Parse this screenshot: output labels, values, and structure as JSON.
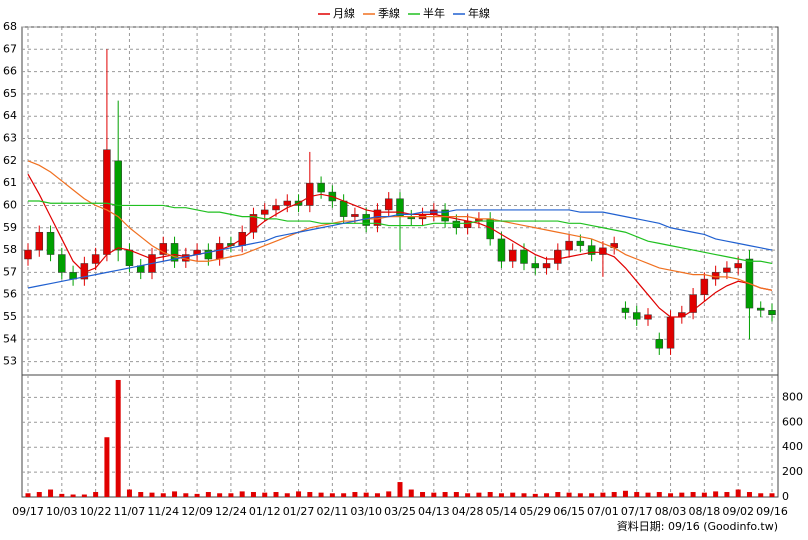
{
  "chart_data": {
    "type": "candlestick",
    "legend_position": "top",
    "grid": true,
    "footnote": "資料日期: 09/16 (Goodinfo.tw)",
    "categories": [
      "09/17",
      null,
      null,
      "10/03",
      null,
      null,
      "10/22",
      null,
      null,
      "11/07",
      null,
      null,
      "11/24",
      null,
      null,
      "12/09",
      null,
      null,
      "12/24",
      null,
      null,
      "01/12",
      null,
      null,
      "01/27",
      null,
      null,
      "02/11",
      null,
      null,
      "03/10",
      null,
      null,
      "03/25",
      null,
      null,
      "04/13",
      null,
      null,
      "04/28",
      null,
      null,
      "05/14",
      null,
      null,
      "05/29",
      null,
      null,
      "06/15",
      null,
      null,
      "07/01",
      null,
      null,
      "07/17",
      null,
      null,
      "08/03",
      null,
      null,
      "08/18",
      null,
      null,
      "09/02",
      null,
      null,
      "09/16"
    ],
    "open": [
      57.6,
      58.0,
      58.8,
      57.8,
      57.0,
      56.7,
      57.4,
      57.8,
      62.0,
      58.0,
      57.3,
      57.0,
      57.8,
      58.3,
      57.5,
      57.8,
      58.0,
      57.6,
      58.3,
      58.2,
      58.8,
      59.6,
      59.8,
      60.0,
      60.2,
      60.0,
      61.0,
      60.6,
      60.2,
      59.5,
      59.6,
      59.1,
      59.8,
      60.3,
      59.5,
      59.4,
      59.6,
      59.8,
      59.3,
      59.0,
      59.3,
      59.4,
      58.5,
      57.5,
      58.0,
      57.4,
      57.2,
      57.4,
      58.0,
      58.4,
      58.2,
      57.8,
      58.1,
      55.4,
      55.2,
      54.9,
      54.0,
      53.6,
      55.0,
      55.2,
      56.0,
      56.7,
      57.0,
      57.2,
      57.6,
      55.4,
      55.3
    ],
    "high": [
      58.3,
      59.1,
      59.1,
      58.1,
      57.3,
      57.7,
      58.1,
      67.0,
      64.7,
      58.3,
      57.6,
      58.1,
      58.6,
      58.6,
      58.1,
      58.3,
      58.3,
      58.6,
      58.6,
      59.1,
      59.9,
      60.1,
      60.3,
      60.5,
      60.5,
      62.4,
      61.3,
      60.9,
      60.5,
      59.9,
      59.9,
      60.1,
      60.6,
      60.6,
      59.8,
      59.9,
      60.1,
      60.1,
      59.6,
      59.6,
      59.7,
      59.7,
      58.8,
      58.3,
      58.3,
      57.7,
      57.7,
      58.3,
      58.7,
      58.7,
      58.5,
      58.4,
      58.6,
      55.7,
      55.5,
      55.4,
      54.3,
      55.3,
      55.5,
      56.3,
      57.0,
      57.3,
      57.5,
      57.7,
      58.0,
      55.7,
      55.6
    ],
    "low": [
      57.3,
      57.7,
      57.5,
      56.7,
      56.4,
      56.4,
      57.1,
      57.5,
      57.5,
      57.0,
      56.7,
      56.7,
      57.5,
      57.2,
      57.2,
      57.5,
      57.3,
      57.3,
      57.9,
      57.9,
      58.5,
      59.3,
      59.5,
      59.7,
      59.7,
      59.7,
      60.3,
      59.9,
      59.2,
      59.2,
      58.8,
      58.8,
      59.5,
      58.0,
      59.1,
      59.1,
      59.3,
      59.0,
      58.7,
      58.7,
      59.0,
      58.2,
      57.2,
      57.2,
      57.1,
      56.9,
      56.9,
      57.1,
      57.7,
      57.9,
      57.5,
      56.8,
      57.8,
      54.9,
      54.6,
      54.6,
      53.3,
      53.3,
      54.7,
      54.9,
      55.7,
      56.4,
      56.7,
      56.9,
      54.0,
      55.0,
      54.8
    ],
    "close": [
      58.0,
      58.8,
      57.8,
      57.0,
      56.7,
      57.4,
      57.8,
      62.5,
      58.0,
      57.3,
      57.0,
      57.8,
      58.3,
      57.5,
      57.8,
      58.0,
      57.6,
      58.3,
      58.2,
      58.8,
      59.6,
      59.8,
      60.0,
      60.2,
      60.0,
      61.0,
      60.6,
      60.2,
      59.5,
      59.6,
      59.1,
      59.8,
      60.3,
      59.5,
      59.4,
      59.6,
      59.8,
      59.3,
      59.0,
      59.3,
      59.4,
      58.5,
      57.5,
      58.0,
      57.4,
      57.2,
      57.4,
      58.0,
      58.4,
      58.2,
      57.8,
      58.1,
      58.3,
      55.2,
      54.9,
      55.1,
      53.6,
      55.0,
      55.2,
      56.0,
      56.7,
      57.0,
      57.2,
      57.4,
      55.4,
      55.3,
      55.1
    ],
    "up_color": "#e00000",
    "down_color": "#00a000",
    "ylim": [
      52.4,
      68
    ],
    "yticks": [
      53,
      54,
      55,
      56,
      57,
      58,
      59,
      60,
      61,
      62,
      63,
      64,
      65,
      66,
      67,
      68
    ],
    "series": [
      {
        "name": "月線",
        "color": "#e00000",
        "values": [
          61.4,
          60.5,
          59.5,
          58.5,
          57.5,
          57.0,
          57.2,
          57.8,
          58.1,
          58.0,
          57.8,
          57.6,
          57.7,
          57.8,
          57.7,
          57.8,
          57.9,
          58.0,
          58.2,
          58.5,
          58.9,
          59.3,
          59.6,
          59.9,
          60.1,
          60.4,
          60.5,
          60.4,
          60.2,
          60.0,
          59.8,
          59.7,
          59.7,
          59.7,
          59.6,
          59.6,
          59.6,
          59.5,
          59.4,
          59.3,
          59.2,
          59.0,
          58.7,
          58.4,
          58.1,
          57.8,
          57.6,
          57.6,
          57.7,
          57.8,
          57.9,
          57.9,
          57.7,
          57.2,
          56.6,
          56.0,
          55.4,
          55.0,
          55.0,
          55.3,
          55.7,
          56.1,
          56.4,
          56.6,
          56.5,
          56.3,
          56.2
        ]
      },
      {
        "name": "季線",
        "color": "#f07020",
        "values": [
          62.0,
          61.8,
          61.5,
          61.1,
          60.7,
          60.3,
          60.0,
          59.8,
          59.5,
          59.0,
          58.6,
          58.2,
          57.9,
          57.7,
          57.6,
          57.5,
          57.5,
          57.6,
          57.7,
          57.8,
          58.0,
          58.2,
          58.4,
          58.6,
          58.8,
          59.0,
          59.1,
          59.2,
          59.3,
          59.3,
          59.4,
          59.4,
          59.5,
          59.5,
          59.5,
          59.5,
          59.5,
          59.5,
          59.5,
          59.5,
          59.4,
          59.4,
          59.3,
          59.2,
          59.1,
          59.0,
          58.9,
          58.8,
          58.7,
          58.6,
          58.5,
          58.3,
          58.1,
          57.8,
          57.6,
          57.4,
          57.2,
          57.1,
          57.0,
          56.9,
          56.9,
          56.8,
          56.8,
          56.7,
          56.5,
          56.3,
          56.2
        ]
      },
      {
        "name": "半年",
        "color": "#20c020",
        "values": [
          60.2,
          60.2,
          60.1,
          60.1,
          60.1,
          60.1,
          60.1,
          60.1,
          60.0,
          60.0,
          60.0,
          60.0,
          60.0,
          59.9,
          59.9,
          59.8,
          59.7,
          59.7,
          59.6,
          59.5,
          59.5,
          59.4,
          59.4,
          59.3,
          59.3,
          59.3,
          59.2,
          59.2,
          59.2,
          59.2,
          59.2,
          59.2,
          59.1,
          59.1,
          59.1,
          59.1,
          59.2,
          59.2,
          59.2,
          59.2,
          59.3,
          59.3,
          59.3,
          59.3,
          59.3,
          59.3,
          59.3,
          59.3,
          59.2,
          59.2,
          59.1,
          59.0,
          58.9,
          58.8,
          58.6,
          58.4,
          58.3,
          58.2,
          58.1,
          58.0,
          57.9,
          57.8,
          57.7,
          57.6,
          57.5,
          57.5,
          57.4
        ]
      },
      {
        "name": "年線",
        "color": "#2060d0",
        "values": [
          56.3,
          56.4,
          56.5,
          56.6,
          56.7,
          56.8,
          56.9,
          57.0,
          57.1,
          57.2,
          57.3,
          57.4,
          57.5,
          57.6,
          57.7,
          57.8,
          57.9,
          58.0,
          58.1,
          58.2,
          58.3,
          58.4,
          58.6,
          58.7,
          58.8,
          58.9,
          59.0,
          59.1,
          59.2,
          59.3,
          59.4,
          59.5,
          59.5,
          59.6,
          59.6,
          59.7,
          59.7,
          59.7,
          59.8,
          59.8,
          59.8,
          59.8,
          59.8,
          59.8,
          59.8,
          59.8,
          59.8,
          59.8,
          59.8,
          59.7,
          59.7,
          59.7,
          59.6,
          59.5,
          59.4,
          59.3,
          59.2,
          59.0,
          58.9,
          58.8,
          58.7,
          58.5,
          58.4,
          58.3,
          58.2,
          58.1,
          58.0
        ]
      }
    ],
    "volume": {
      "type": "bar",
      "color": "#e00000",
      "ylim": [
        0,
        980
      ],
      "yticks": [
        0,
        200,
        400,
        600,
        800
      ],
      "values": [
        30,
        40,
        60,
        25,
        20,
        20,
        40,
        480,
        940,
        60,
        40,
        35,
        30,
        45,
        30,
        25,
        40,
        30,
        30,
        45,
        40,
        35,
        40,
        30,
        45,
        40,
        35,
        30,
        30,
        40,
        35,
        30,
        45,
        120,
        60,
        40,
        35,
        40,
        40,
        30,
        35,
        40,
        30,
        35,
        30,
        25,
        30,
        40,
        35,
        30,
        30,
        35,
        40,
        50,
        40,
        35,
        40,
        30,
        35,
        40,
        35,
        45,
        40,
        60,
        40,
        30,
        30
      ]
    }
  }
}
